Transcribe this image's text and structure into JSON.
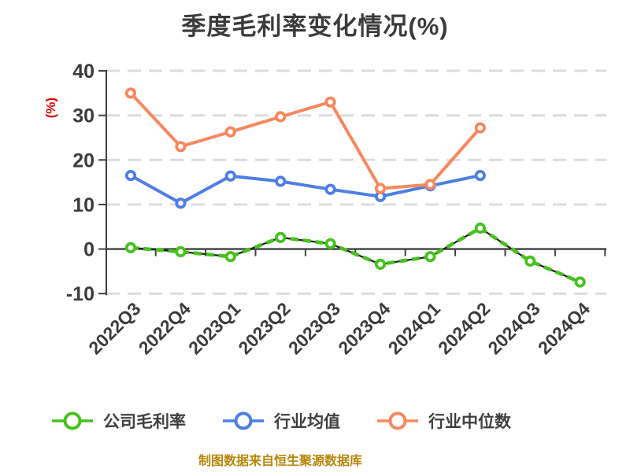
{
  "title": "季度毛利率变化情况(%)",
  "footer": "制图数据来自恒生聚源数据库",
  "colors": {
    "title_text": "#3b3b3b",
    "axis": "#3f3f3f",
    "tick_label": "#3b3b3b",
    "grid": "#dcdcdc",
    "ylabel_red": "#e60000",
    "footer_gold": "#b8860b",
    "company": "#46c21e",
    "industry_mean": "#4d7ee2",
    "industry_median": "#f7885e",
    "marker_fill": "#ffffff",
    "dash_underlay": "#1f1f1f"
  },
  "chart_data": {
    "type": "line",
    "title": "季度毛利率变化情况(%)",
    "xlabel": "",
    "ylabel": "(%)",
    "ylim": [
      -10,
      40
    ],
    "yticks": [
      40,
      30,
      20,
      10,
      0,
      -10
    ],
    "grid": true,
    "grid_style": "dashed",
    "legend_position": "bottom",
    "categories": [
      "2022Q3",
      "2022Q4",
      "2023Q1",
      "2023Q2",
      "2023Q3",
      "2023Q4",
      "2024Q1",
      "2024Q2",
      "2024Q3",
      "2024Q4"
    ],
    "series": [
      {
        "name": "公司毛利率",
        "color": "#46c21e",
        "style": "dashed",
        "marker": "circle-open",
        "values": [
          0.3,
          -0.6,
          -1.7,
          2.6,
          1.2,
          -3.4,
          -1.7,
          4.7,
          -2.7,
          -7.4
        ]
      },
      {
        "name": "行业均值",
        "color": "#4d7ee2",
        "style": "solid",
        "marker": "circle-open",
        "values": [
          16.5,
          10.3,
          16.4,
          15.2,
          13.4,
          11.8,
          14.2,
          16.5,
          null,
          null
        ]
      },
      {
        "name": "行业中位数",
        "color": "#f7885e",
        "style": "solid",
        "marker": "circle-open",
        "values": [
          35.0,
          23.0,
          26.3,
          29.7,
          33.0,
          13.6,
          14.5,
          27.2,
          null,
          null
        ]
      }
    ]
  }
}
